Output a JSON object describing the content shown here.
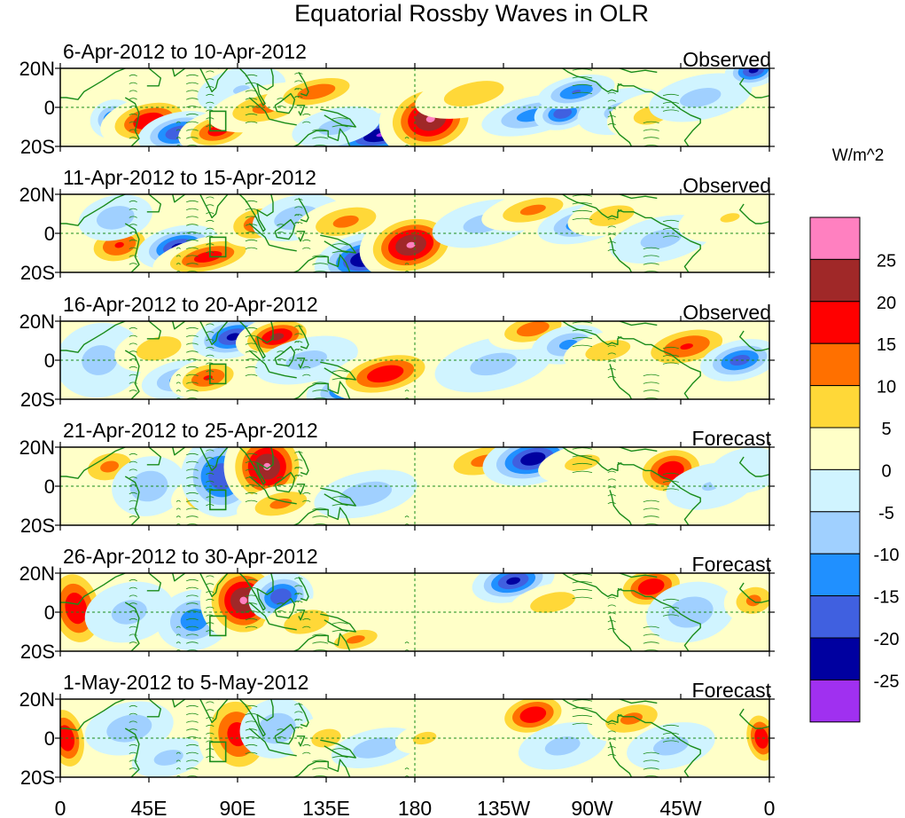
{
  "chart_data": {
    "type": "heatmap",
    "title": "Equatorial Rossby Waves in OLR",
    "units": "W/m^2",
    "x_ticks": [
      "0",
      "45E",
      "90E",
      "135E",
      "180",
      "135W",
      "90W",
      "45W",
      "0"
    ],
    "y_ticks": [
      "20N",
      "0",
      "20S"
    ],
    "xlim": [
      0,
      360
    ],
    "ylim": [
      -20,
      20
    ],
    "colorbar": {
      "labels": [
        "25",
        "20",
        "15",
        "10",
        "5",
        "0",
        "-5",
        "-10",
        "-15",
        "-20",
        "-25"
      ],
      "colors": [
        "#ff80c0",
        "#a02828",
        "#ff0000",
        "#ff7000",
        "#ffd838",
        "#ffffc8",
        "#d0f4ff",
        "#a0d0ff",
        "#2090ff",
        "#4060e0",
        "#0000a0",
        "#a030f0"
      ]
    },
    "panels": [
      {
        "dates": "6-Apr-2012 to 10-Apr-2012",
        "type_label": "Observed",
        "anomalies": [
          {
            "lon": 27,
            "lat": -6,
            "value": -18,
            "sx": 6,
            "sy": 5
          },
          {
            "lon": 45,
            "lat": -7,
            "value": 22,
            "sx": 12,
            "sy": 6
          },
          {
            "lon": 60,
            "lat": -13,
            "value": -22,
            "sx": 10,
            "sy": 5
          },
          {
            "lon": 80,
            "lat": -12,
            "value": 20,
            "sx": 10,
            "sy": 5
          },
          {
            "lon": 92,
            "lat": 9,
            "value": -8,
            "sx": 12,
            "sy": 6
          },
          {
            "lon": 105,
            "lat": 0,
            "value": 14,
            "sx": 16,
            "sy": 6
          },
          {
            "lon": 130,
            "lat": 8,
            "value": 16,
            "sx": 14,
            "sy": 5
          },
          {
            "lon": 163,
            "lat": -14,
            "value": -28,
            "sx": 14,
            "sy": 5
          },
          {
            "lon": 140,
            "lat": -10,
            "value": -10,
            "sx": 12,
            "sy": 5
          },
          {
            "lon": 188,
            "lat": -6,
            "value": 28,
            "sx": 12,
            "sy": 9
          },
          {
            "lon": 210,
            "lat": 7,
            "value": 12,
            "sx": 16,
            "sy": 6
          },
          {
            "lon": 240,
            "lat": -4,
            "value": -15,
            "sx": 14,
            "sy": 5
          },
          {
            "lon": 255,
            "lat": -3,
            "value": -22,
            "sx": 7,
            "sy": 4
          },
          {
            "lon": 262,
            "lat": 8,
            "value": -18,
            "sx": 10,
            "sy": 4
          },
          {
            "lon": 285,
            "lat": -2,
            "value": -10,
            "sx": 12,
            "sy": 6
          },
          {
            "lon": 300,
            "lat": -4,
            "value": 10,
            "sx": 12,
            "sy": 6
          },
          {
            "lon": 325,
            "lat": 5,
            "value": -10,
            "sx": 14,
            "sy": 6
          },
          {
            "lon": 352,
            "lat": 19,
            "value": -24,
            "sx": 7,
            "sy": 4
          }
        ]
      },
      {
        "dates": "11-Apr-2012 to 15-Apr-2012",
        "type_label": "Observed",
        "anomalies": [
          {
            "lon": 30,
            "lat": -6,
            "value": 18,
            "sx": 10,
            "sy": 6
          },
          {
            "lon": 28,
            "lat": 8,
            "value": -12,
            "sx": 10,
            "sy": 6
          },
          {
            "lon": 60,
            "lat": -7,
            "value": -24,
            "sx": 10,
            "sy": 5
          },
          {
            "lon": 75,
            "lat": -12,
            "value": 20,
            "sx": 14,
            "sy": 5
          },
          {
            "lon": 100,
            "lat": 5,
            "value": 16,
            "sx": 10,
            "sy": 6
          },
          {
            "lon": 120,
            "lat": 8,
            "value": -12,
            "sx": 12,
            "sy": 6
          },
          {
            "lon": 145,
            "lat": 6,
            "value": 14,
            "sx": 14,
            "sy": 6
          },
          {
            "lon": 155,
            "lat": -13,
            "value": -28,
            "sx": 12,
            "sy": 6
          },
          {
            "lon": 178,
            "lat": -6,
            "value": 28,
            "sx": 12,
            "sy": 8
          },
          {
            "lon": 215,
            "lat": 5,
            "value": -10,
            "sx": 14,
            "sy": 6
          },
          {
            "lon": 240,
            "lat": 12,
            "value": 14,
            "sx": 14,
            "sy": 5
          },
          {
            "lon": 265,
            "lat": 5,
            "value": -16,
            "sx": 12,
            "sy": 5
          },
          {
            "lon": 280,
            "lat": 9,
            "value": 12,
            "sx": 12,
            "sy": 5
          },
          {
            "lon": 305,
            "lat": -3,
            "value": -10,
            "sx": 14,
            "sy": 6
          },
          {
            "lon": 340,
            "lat": 8,
            "value": 8,
            "sx": 14,
            "sy": 6
          }
        ]
      },
      {
        "dates": "16-Apr-2012 to 20-Apr-2012",
        "type_label": "Observed",
        "anomalies": [
          {
            "lon": 20,
            "lat": 0,
            "value": -10,
            "sx": 12,
            "sy": 10
          },
          {
            "lon": 50,
            "lat": 6,
            "value": 12,
            "sx": 12,
            "sy": 6
          },
          {
            "lon": 60,
            "lat": -10,
            "value": -14,
            "sx": 10,
            "sy": 5
          },
          {
            "lon": 75,
            "lat": -9,
            "value": 18,
            "sx": 10,
            "sy": 5
          },
          {
            "lon": 88,
            "lat": 12,
            "value": -24,
            "sx": 10,
            "sy": 5
          },
          {
            "lon": 110,
            "lat": 12,
            "value": 24,
            "sx": 10,
            "sy": 5
          },
          {
            "lon": 125,
            "lat": 0,
            "value": -10,
            "sx": 14,
            "sy": 6
          },
          {
            "lon": 150,
            "lat": -14,
            "value": -24,
            "sx": 12,
            "sy": 5
          },
          {
            "lon": 165,
            "lat": -7,
            "value": 22,
            "sx": 14,
            "sy": 6
          },
          {
            "lon": 220,
            "lat": -2,
            "value": -10,
            "sx": 16,
            "sy": 7
          },
          {
            "lon": 240,
            "lat": 16,
            "value": 16,
            "sx": 12,
            "sy": 5
          },
          {
            "lon": 258,
            "lat": 8,
            "value": -14,
            "sx": 10,
            "sy": 5
          },
          {
            "lon": 278,
            "lat": 5,
            "value": 12,
            "sx": 12,
            "sy": 5
          },
          {
            "lon": 318,
            "lat": 7,
            "value": 18,
            "sx": 14,
            "sy": 6
          },
          {
            "lon": 345,
            "lat": 0,
            "value": -20,
            "sx": 10,
            "sy": 5
          }
        ]
      },
      {
        "dates": "21-Apr-2012 to 25-Apr-2012",
        "type_label": "Forecast",
        "anomalies": [
          {
            "lon": 25,
            "lat": 10,
            "value": 14,
            "sx": 10,
            "sy": 6
          },
          {
            "lon": 45,
            "lat": 0,
            "value": -12,
            "sx": 10,
            "sy": 8
          },
          {
            "lon": 75,
            "lat": -5,
            "value": 14,
            "sx": 10,
            "sy": 6
          },
          {
            "lon": 82,
            "lat": 5,
            "value": -22,
            "sx": 10,
            "sy": 10
          },
          {
            "lon": 105,
            "lat": 10,
            "value": 28,
            "sx": 10,
            "sy": 10
          },
          {
            "lon": 112,
            "lat": -9,
            "value": 14,
            "sx": 12,
            "sy": 5
          },
          {
            "lon": 155,
            "lat": -4,
            "value": -12,
            "sx": 14,
            "sy": 6
          },
          {
            "lon": 215,
            "lat": 13,
            "value": 14,
            "sx": 14,
            "sy": 6
          },
          {
            "lon": 240,
            "lat": 14,
            "value": -26,
            "sx": 12,
            "sy": 6
          },
          {
            "lon": 265,
            "lat": 12,
            "value": 10,
            "sx": 12,
            "sy": 5
          },
          {
            "lon": 310,
            "lat": 8,
            "value": 22,
            "sx": 10,
            "sy": 7
          },
          {
            "lon": 330,
            "lat": 0,
            "value": -8,
            "sx": 12,
            "sy": 6
          },
          {
            "lon": 348,
            "lat": 8,
            "value": -6,
            "sx": 10,
            "sy": 6
          }
        ]
      },
      {
        "dates": "26-Apr-2012 to 30-Apr-2012",
        "type_label": "Forecast",
        "anomalies": [
          {
            "lon": 8,
            "lat": 2,
            "value": 22,
            "sx": 8,
            "sy": 12
          },
          {
            "lon": 35,
            "lat": 0,
            "value": -10,
            "sx": 12,
            "sy": 8
          },
          {
            "lon": 68,
            "lat": -4,
            "value": -16,
            "sx": 10,
            "sy": 8
          },
          {
            "lon": 93,
            "lat": 6,
            "value": 28,
            "sx": 10,
            "sy": 10
          },
          {
            "lon": 112,
            "lat": 8,
            "value": -22,
            "sx": 8,
            "sy": 6
          },
          {
            "lon": 125,
            "lat": -5,
            "value": 12,
            "sx": 12,
            "sy": 6
          },
          {
            "lon": 150,
            "lat": -14,
            "value": 14,
            "sx": 10,
            "sy": 4
          },
          {
            "lon": 230,
            "lat": 16,
            "value": -24,
            "sx": 10,
            "sy": 5
          },
          {
            "lon": 250,
            "lat": 5,
            "value": 12,
            "sx": 12,
            "sy": 5
          },
          {
            "lon": 300,
            "lat": 13,
            "value": 22,
            "sx": 10,
            "sy": 6
          },
          {
            "lon": 320,
            "lat": 0,
            "value": -12,
            "sx": 12,
            "sy": 8
          },
          {
            "lon": 352,
            "lat": 6,
            "value": 14,
            "sx": 8,
            "sy": 6
          }
        ]
      },
      {
        "dates": "1-May-2012 to 5-May-2012",
        "type_label": "Forecast",
        "anomalies": [
          {
            "lon": 3,
            "lat": 0,
            "value": 22,
            "sx": 6,
            "sy": 10
          },
          {
            "lon": 35,
            "lat": 5,
            "value": -12,
            "sx": 12,
            "sy": 7
          },
          {
            "lon": 55,
            "lat": -10,
            "value": -10,
            "sx": 10,
            "sy": 5
          },
          {
            "lon": 90,
            "lat": 2,
            "value": 20,
            "sx": 10,
            "sy": 12
          },
          {
            "lon": 110,
            "lat": 5,
            "value": -12,
            "sx": 10,
            "sy": 8
          },
          {
            "lon": 135,
            "lat": 0,
            "value": 10,
            "sx": 10,
            "sy": 6
          },
          {
            "lon": 160,
            "lat": -5,
            "value": -12,
            "sx": 12,
            "sy": 5
          },
          {
            "lon": 185,
            "lat": 0,
            "value": 10,
            "sx": 8,
            "sy": 4
          },
          {
            "lon": 240,
            "lat": 12,
            "value": 22,
            "sx": 10,
            "sy": 6
          },
          {
            "lon": 255,
            "lat": -4,
            "value": -10,
            "sx": 12,
            "sy": 6
          },
          {
            "lon": 290,
            "lat": 10,
            "value": 14,
            "sx": 12,
            "sy": 6
          },
          {
            "lon": 310,
            "lat": -4,
            "value": -10,
            "sx": 12,
            "sy": 6
          },
          {
            "lon": 356,
            "lat": 0,
            "value": 22,
            "sx": 5,
            "sy": 8
          }
        ]
      }
    ]
  }
}
